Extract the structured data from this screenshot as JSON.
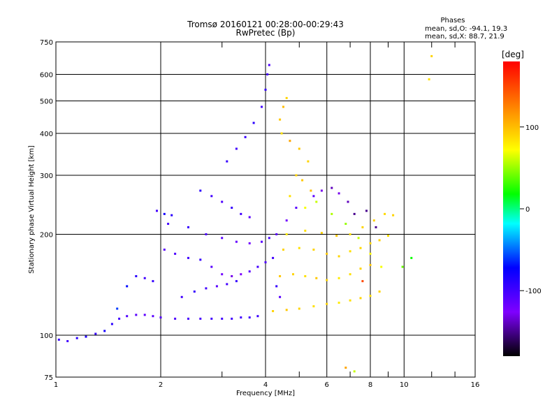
{
  "chart_data": {
    "type": "scatter",
    "title": "Tromsø 20160121 00:28:00-00:29:43",
    "subtitle": "RwPretec (Bp)",
    "xlabel": "Frequency [MHz]",
    "ylabel": "Stationary phase Virtual Height [km]",
    "x_scale": "log",
    "y_scale": "log",
    "xlim": [
      1,
      16
    ],
    "ylim": [
      75,
      750
    ],
    "x_ticks": [
      "1",
      "2",
      "4",
      "6",
      "8",
      "10",
      "16"
    ],
    "x_tick_values": [
      1,
      2,
      4,
      6,
      8,
      10,
      16
    ],
    "y_ticks": [
      "75",
      "100",
      "200",
      "300",
      "400",
      "500",
      "600",
      "750"
    ],
    "y_tick_values": [
      75,
      100,
      200,
      300,
      400,
      500,
      600,
      750
    ],
    "grid": true,
    "stats_title": "Phases",
    "stats_o": "mean, sd,O: -94.1, 19.3",
    "stats_x": "mean, sd,X:  88.7, 21.9",
    "colorbar": {
      "label": "[deg]",
      "range": [
        -180,
        180
      ],
      "ticks": [
        "100",
        "0",
        "-100"
      ],
      "tick_values": [
        100,
        0,
        -100
      ]
    },
    "series": [
      {
        "values": [
          [
            1.02,
            97,
            -95
          ],
          [
            1.08,
            96,
            -100
          ],
          [
            1.15,
            98,
            -90
          ],
          [
            1.22,
            99,
            -85
          ],
          [
            1.3,
            101,
            -95
          ],
          [
            1.38,
            103,
            -80
          ],
          [
            1.45,
            108,
            -90
          ],
          [
            1.52,
            112,
            -100
          ],
          [
            1.6,
            114,
            -105
          ],
          [
            1.7,
            115,
            -110
          ],
          [
            1.8,
            115,
            -112
          ],
          [
            1.9,
            114,
            -110
          ],
          [
            2.0,
            113,
            -108
          ],
          [
            2.2,
            112,
            -106
          ],
          [
            2.4,
            112,
            -104
          ],
          [
            2.6,
            112,
            -102
          ],
          [
            2.8,
            112,
            -100
          ],
          [
            3.0,
            112,
            -100
          ],
          [
            3.2,
            112,
            -100
          ],
          [
            3.4,
            113,
            -100
          ],
          [
            3.6,
            113,
            -98
          ],
          [
            3.8,
            114,
            -96
          ],
          [
            2.05,
            180,
            -110
          ],
          [
            2.2,
            175,
            -105
          ],
          [
            2.4,
            170,
            -100
          ],
          [
            2.6,
            168,
            -95
          ],
          [
            2.8,
            160,
            -110
          ],
          [
            3.0,
            152,
            -120
          ],
          [
            3.2,
            150,
            -130
          ],
          [
            3.4,
            152,
            -125
          ],
          [
            3.6,
            155,
            -110
          ],
          [
            3.8,
            160,
            -100
          ],
          [
            4.0,
            165,
            -105
          ],
          [
            2.1,
            215,
            -100
          ],
          [
            2.4,
            210,
            -95
          ],
          [
            2.7,
            200,
            -105
          ],
          [
            3.0,
            195,
            -110
          ],
          [
            3.3,
            190,
            -115
          ],
          [
            3.6,
            188,
            -120
          ],
          [
            3.9,
            190,
            -110
          ],
          [
            4.1,
            195,
            -100
          ],
          [
            2.6,
            270,
            -90
          ],
          [
            2.8,
            260,
            -100
          ],
          [
            3.0,
            250,
            -105
          ],
          [
            3.2,
            240,
            -95
          ],
          [
            3.4,
            230,
            -100
          ],
          [
            3.6,
            225,
            -110
          ],
          [
            3.1,
            330,
            -95
          ],
          [
            3.3,
            360,
            -100
          ],
          [
            3.5,
            390,
            -95
          ],
          [
            3.7,
            430,
            -90
          ],
          [
            3.9,
            480,
            -100
          ],
          [
            4.0,
            540,
            -95
          ],
          [
            4.05,
            600,
            -100
          ],
          [
            4.1,
            640,
            -105
          ],
          [
            2.3,
            130,
            -100
          ],
          [
            2.5,
            135,
            -95
          ],
          [
            2.7,
            138,
            -100
          ],
          [
            2.9,
            140,
            -110
          ],
          [
            3.1,
            142,
            -100
          ],
          [
            3.3,
            145,
            -95
          ],
          [
            1.7,
            150,
            -90
          ],
          [
            1.8,
            148,
            -100
          ],
          [
            1.9,
            145,
            -95
          ],
          [
            1.6,
            140,
            -70
          ],
          [
            1.5,
            120,
            -60
          ],
          [
            1.95,
            235,
            -100
          ],
          [
            2.05,
            230,
            -80
          ],
          [
            2.15,
            228,
            -90
          ],
          [
            4.2,
            170,
            -100
          ],
          [
            4.3,
            140,
            -95
          ],
          [
            4.4,
            130,
            -110
          ],
          [
            5.5,
            260,
            -110
          ],
          [
            5.8,
            270,
            -130
          ],
          [
            6.2,
            275,
            -140
          ],
          [
            6.5,
            265,
            -130
          ],
          [
            6.9,
            250,
            -140
          ],
          [
            7.2,
            230,
            -150
          ],
          [
            7.8,
            235,
            -150
          ],
          [
            8.3,
            210,
            -150
          ],
          [
            4.3,
            200,
            -110
          ],
          [
            4.6,
            220,
            -120
          ],
          [
            4.9,
            240,
            -110
          ]
        ]
      },
      {
        "values": [
          [
            4.2,
            118,
            90
          ],
          [
            4.6,
            119,
            95
          ],
          [
            5.0,
            120,
            90
          ],
          [
            5.5,
            122,
            85
          ],
          [
            6.0,
            124,
            90
          ],
          [
            6.5,
            125,
            80
          ],
          [
            7.0,
            127,
            85
          ],
          [
            7.5,
            129,
            90
          ],
          [
            8.0,
            131,
            85
          ],
          [
            8.5,
            135,
            90
          ],
          [
            4.4,
            150,
            95
          ],
          [
            4.8,
            152,
            90
          ],
          [
            5.2,
            150,
            85
          ],
          [
            5.6,
            148,
            95
          ],
          [
            6.0,
            146,
            90
          ],
          [
            6.5,
            148,
            80
          ],
          [
            7.0,
            152,
            85
          ],
          [
            7.5,
            158,
            90
          ],
          [
            8.0,
            162,
            95
          ],
          [
            4.5,
            180,
            90
          ],
          [
            5.0,
            182,
            85
          ],
          [
            5.5,
            180,
            90
          ],
          [
            6.0,
            175,
            95
          ],
          [
            6.5,
            172,
            90
          ],
          [
            7.0,
            178,
            85
          ],
          [
            7.5,
            182,
            88
          ],
          [
            8.0,
            188,
            90
          ],
          [
            8.5,
            192,
            92
          ],
          [
            9.0,
            198,
            85
          ],
          [
            4.6,
            200,
            80
          ],
          [
            5.2,
            205,
            85
          ],
          [
            5.8,
            202,
            90
          ],
          [
            6.4,
            198,
            95
          ],
          [
            7.0,
            200,
            85
          ],
          [
            7.6,
            210,
            90
          ],
          [
            8.2,
            220,
            92
          ],
          [
            8.8,
            230,
            88
          ],
          [
            9.3,
            228,
            90
          ],
          [
            4.4,
            440,
            95
          ],
          [
            4.5,
            480,
            100
          ],
          [
            4.6,
            510,
            90
          ],
          [
            4.45,
            400,
            85
          ],
          [
            4.7,
            380,
            110
          ],
          [
            5.0,
            360,
            95
          ],
          [
            5.3,
            330,
            90
          ],
          [
            5.2,
            240,
            70
          ],
          [
            5.6,
            250,
            60
          ],
          [
            6.2,
            230,
            55
          ],
          [
            6.8,
            215,
            50
          ],
          [
            7.4,
            195,
            60
          ],
          [
            8.0,
            175,
            75
          ],
          [
            8.6,
            160,
            70
          ],
          [
            4.7,
            260,
            85
          ],
          [
            4.9,
            300,
            90
          ],
          [
            5.1,
            290,
            95
          ],
          [
            5.4,
            270,
            100
          ],
          [
            12.0,
            680,
            90
          ],
          [
            11.8,
            580,
            85
          ],
          [
            10.5,
            170,
            20
          ],
          [
            9.9,
            160,
            40
          ],
          [
            7.6,
            145,
            150
          ],
          [
            6.8,
            80,
            110
          ],
          [
            7.2,
            78,
            60
          ]
        ]
      }
    ]
  }
}
